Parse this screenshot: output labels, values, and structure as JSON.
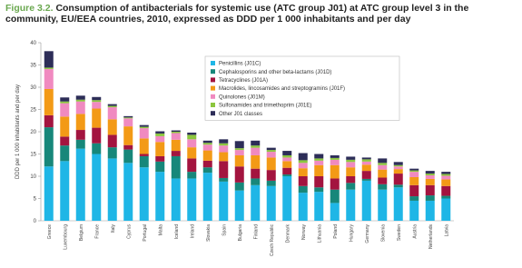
{
  "chart_data": {
    "type": "stacked_bar",
    "figure_label": "Figure 3.2.",
    "title": "Consumption of antibacterials for systemic use (ATC group J01) at ATC group level 3 in the community, EU/EEA countries, 2010, expressed as DDD per 1 000 inhabitants and per day",
    "ylabel": "DDD per 1 000 inhabitants and per day",
    "categories": [
      "Greece",
      "Luxembourg",
      "Belgium",
      "France",
      "Italy",
      "Cyprus",
      "Portugal",
      "Malta",
      "Iceland",
      "Ireland",
      "Slovakia",
      "Spain",
      "Bulgaria",
      "Finland",
      "Czech Republic",
      "Denmark",
      "Norway",
      "Lithuania",
      "Poland",
      "Hungary",
      "Germany",
      "Slovenia",
      "Sweden",
      "Austria",
      "Netherlands",
      "Latvia"
    ],
    "series": [
      {
        "name": "Penicillins (J01C)",
        "color": "#1fb6e6",
        "values": [
          12.2,
          13.4,
          16.2,
          15.0,
          14.0,
          13.0,
          12.0,
          11.0,
          9.5,
          9.5,
          10.8,
          8.8,
          6.8,
          8.0,
          7.8,
          10.0,
          6.3,
          6.5,
          4.0,
          7.0,
          9.0,
          7.0,
          7.5,
          4.5,
          4.5,
          5.0
        ]
      },
      {
        "name": "Cephalosporins and other beta-lactams (J01D)",
        "color": "#17877a",
        "values": [
          8.8,
          3.5,
          2.0,
          2.4,
          2.5,
          3.0,
          2.5,
          2.3,
          5.0,
          1.5,
          1.2,
          0.8,
          1.8,
          1.5,
          1.2,
          0.4,
          1.5,
          1.0,
          3.0,
          1.5,
          0.4,
          1.2,
          0.6,
          1.0,
          1.2,
          0.6
        ]
      },
      {
        "name": "Tetracyclines (J01A)",
        "color": "#a3143f",
        "values": [
          2.7,
          2.0,
          2.2,
          3.5,
          2.8,
          1.0,
          0.5,
          1.2,
          1.2,
          3.0,
          1.5,
          3.8,
          3.6,
          2.2,
          2.4,
          1.5,
          2.2,
          2.5,
          2.5,
          1.5,
          1.8,
          1.5,
          2.5,
          2.5,
          2.3,
          2.2
        ]
      },
      {
        "name": "Macrolides, lincosamides and streptogramins (J01F)",
        "color": "#f39a16",
        "values": [
          5.9,
          4.5,
          3.6,
          4.3,
          3.5,
          4.2,
          3.5,
          3.2,
          2.5,
          2.5,
          2.3,
          2.0,
          2.5,
          3.0,
          2.8,
          1.5,
          1.8,
          2.5,
          3.0,
          2.0,
          1.4,
          1.8,
          1.0,
          1.8,
          1.4,
          1.5
        ]
      },
      {
        "name": "Quinolones (J01M)",
        "color": "#f08ac0",
        "values": [
          4.5,
          3.0,
          2.8,
          1.5,
          2.7,
          1.8,
          2.3,
          1.3,
          1.5,
          1.8,
          1.3,
          1.5,
          1.2,
          1.7,
          1.3,
          0.8,
          1.2,
          1.0,
          1.2,
          1.2,
          0.7,
          1.0,
          0.6,
          1.2,
          0.8,
          0.8
        ]
      },
      {
        "name": "Sulfonamides and trimethoprim (J01E)",
        "color": "#8cc63e",
        "values": [
          0.3,
          0.4,
          0.4,
          0.4,
          0.3,
          0.2,
          0.3,
          0.6,
          0.3,
          1.0,
          0.4,
          0.5,
          0.4,
          0.5,
          0.4,
          0.5,
          0.6,
          0.5,
          0.4,
          0.5,
          0.5,
          0.5,
          0.3,
          0.3,
          0.4,
          0.4
        ]
      },
      {
        "name": "Other J01 classes",
        "color": "#2d2d58",
        "values": [
          3.7,
          0.9,
          0.9,
          0.7,
          0.4,
          0.3,
          0.4,
          0.5,
          0.3,
          0.5,
          0.5,
          0.9,
          1.6,
          1.1,
          0.5,
          1.0,
          1.6,
          1.0,
          0.6,
          0.7,
          0.4,
          1.0,
          0.7,
          0.4,
          0.6,
          0.5
        ]
      }
    ],
    "ylim": [
      0,
      40
    ],
    "yticks": [
      0,
      5,
      10,
      15,
      20,
      25,
      30,
      35,
      40
    ]
  }
}
